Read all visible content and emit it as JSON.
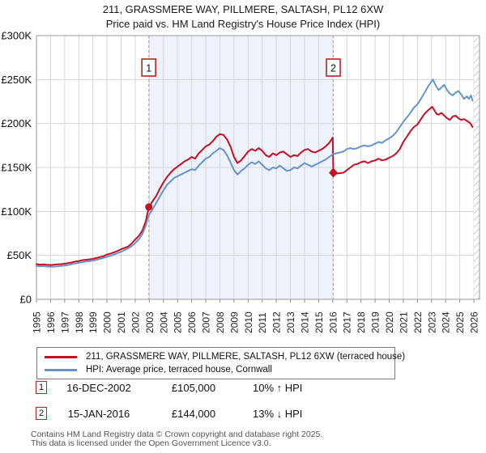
{
  "title": "211, GRASSMERE WAY, PILLMERE, SALTASH, PL12 6XW",
  "subtitle": "Price paid vs. HM Land Registry's House Price Index (HPI)",
  "footer": {
    "line1": "Contains HM Land Registry data © Crown copyright and database right 2025.",
    "line2": "This data is licensed under the Open Government Licence v3.0."
  },
  "chart_data": {
    "type": "line",
    "xlim": [
      1995,
      2026.4
    ],
    "ylim": [
      0,
      300
    ],
    "units": "GBP thousands",
    "grid": true,
    "legend_position": "bottom",
    "x_ticks": [
      1995,
      1996,
      1997,
      1998,
      1999,
      2000,
      2001,
      2002,
      2003,
      2004,
      2005,
      2006,
      2007,
      2008,
      2009,
      2010,
      2011,
      2012,
      2013,
      2014,
      2015,
      2016,
      2017,
      2018,
      2019,
      2020,
      2021,
      2022,
      2023,
      2024,
      2025,
      2026
    ],
    "y_ticks": [
      {
        "value": 0,
        "label": "£0"
      },
      {
        "value": 50,
        "label": "£50K"
      },
      {
        "value": 100,
        "label": "£100K"
      },
      {
        "value": 150,
        "label": "£150K"
      },
      {
        "value": 200,
        "label": "£200K"
      },
      {
        "value": 250,
        "label": "£250K"
      },
      {
        "value": 300,
        "label": "£300K"
      }
    ],
    "colors": {
      "sale_line": "#ea9090",
      "flag_border": "#bb2222"
    },
    "shaded_region": {
      "from": 2002.96,
      "to": 2016.04,
      "color": "#eef2fb"
    },
    "hatch_from": 2026.0,
    "series": [
      {
        "name": "211, GRASSMERE WAY, PILLMERE, SALTASH, PL12 6XW (terraced house)",
        "color": "#c50f24",
        "points": [
          [
            1995.0,
            40
          ],
          [
            1995.25,
            39.5
          ],
          [
            1995.5,
            39.8
          ],
          [
            1995.75,
            39.2
          ],
          [
            1996.0,
            39
          ],
          [
            1996.25,
            39.4
          ],
          [
            1996.5,
            39.8
          ],
          [
            1996.75,
            40
          ],
          [
            1997.0,
            40.5
          ],
          [
            1997.25,
            41.2
          ],
          [
            1997.5,
            42
          ],
          [
            1997.75,
            43
          ],
          [
            1998.0,
            43.5
          ],
          [
            1998.25,
            44.5
          ],
          [
            1998.5,
            45
          ],
          [
            1998.75,
            45.5
          ],
          [
            1999.0,
            46
          ],
          [
            1999.25,
            47
          ],
          [
            1999.5,
            48
          ],
          [
            1999.75,
            49
          ],
          [
            2000.0,
            51
          ],
          [
            2000.25,
            52
          ],
          [
            2000.5,
            53.5
          ],
          [
            2000.75,
            55
          ],
          [
            2001.0,
            57
          ],
          [
            2001.25,
            58.5
          ],
          [
            2001.5,
            60
          ],
          [
            2001.75,
            63.5
          ],
          [
            2002.0,
            68
          ],
          [
            2002.25,
            72
          ],
          [
            2002.5,
            78
          ],
          [
            2002.75,
            89
          ],
          [
            2002.96,
            105
          ],
          [
            2003.25,
            112
          ],
          [
            2003.5,
            118
          ],
          [
            2003.75,
            126
          ],
          [
            2004.0,
            133
          ],
          [
            2004.25,
            139
          ],
          [
            2004.5,
            144
          ],
          [
            2004.75,
            148
          ],
          [
            2005.0,
            151
          ],
          [
            2005.25,
            154
          ],
          [
            2005.5,
            157
          ],
          [
            2005.75,
            159
          ],
          [
            2006.0,
            162
          ],
          [
            2006.25,
            160
          ],
          [
            2006.5,
            166
          ],
          [
            2006.75,
            170
          ],
          [
            2007.0,
            174
          ],
          [
            2007.25,
            176
          ],
          [
            2007.5,
            180
          ],
          [
            2007.75,
            185
          ],
          [
            2008.0,
            188
          ],
          [
            2008.25,
            187
          ],
          [
            2008.5,
            182
          ],
          [
            2008.75,
            174
          ],
          [
            2009.0,
            162
          ],
          [
            2009.25,
            155
          ],
          [
            2009.5,
            158
          ],
          [
            2009.75,
            163
          ],
          [
            2010.0,
            168
          ],
          [
            2010.25,
            171
          ],
          [
            2010.5,
            169
          ],
          [
            2010.75,
            172
          ],
          [
            2011.0,
            169
          ],
          [
            2011.25,
            164
          ],
          [
            2011.5,
            162
          ],
          [
            2011.75,
            166
          ],
          [
            2012.0,
            164
          ],
          [
            2012.25,
            167
          ],
          [
            2012.5,
            168
          ],
          [
            2012.75,
            165
          ],
          [
            2013.0,
            162
          ],
          [
            2013.25,
            164
          ],
          [
            2013.5,
            163
          ],
          [
            2013.75,
            167
          ],
          [
            2014.0,
            170
          ],
          [
            2014.25,
            171
          ],
          [
            2014.5,
            168
          ],
          [
            2014.75,
            167
          ],
          [
            2015.0,
            169
          ],
          [
            2015.25,
            171
          ],
          [
            2015.5,
            174
          ],
          [
            2015.75,
            178
          ],
          [
            2016.0,
            184
          ],
          [
            2016.04,
            144
          ],
          [
            2016.25,
            143
          ],
          [
            2016.5,
            143.5
          ],
          [
            2016.75,
            144
          ],
          [
            2017.0,
            147
          ],
          [
            2017.25,
            150
          ],
          [
            2017.5,
            153
          ],
          [
            2017.75,
            154
          ],
          [
            2018.0,
            156
          ],
          [
            2018.25,
            157
          ],
          [
            2018.5,
            155
          ],
          [
            2018.75,
            157
          ],
          [
            2019.0,
            158
          ],
          [
            2019.25,
            160
          ],
          [
            2019.5,
            158
          ],
          [
            2019.75,
            159
          ],
          [
            2020.0,
            161
          ],
          [
            2020.25,
            163
          ],
          [
            2020.5,
            166
          ],
          [
            2020.75,
            171
          ],
          [
            2021.0,
            179
          ],
          [
            2021.25,
            185
          ],
          [
            2021.5,
            191
          ],
          [
            2021.75,
            196
          ],
          [
            2022.0,
            199
          ],
          [
            2022.25,
            205
          ],
          [
            2022.5,
            211
          ],
          [
            2022.75,
            215
          ],
          [
            2023.05,
            219
          ],
          [
            2023.2,
            215
          ],
          [
            2023.35,
            211
          ],
          [
            2023.5,
            210
          ],
          [
            2023.7,
            212
          ],
          [
            2023.9,
            209
          ],
          [
            2024.1,
            206
          ],
          [
            2024.3,
            204
          ],
          [
            2024.5,
            208
          ],
          [
            2024.7,
            209
          ],
          [
            2024.9,
            206
          ],
          [
            2025.1,
            204
          ],
          [
            2025.3,
            205
          ],
          [
            2025.5,
            203
          ],
          [
            2025.7,
            201
          ],
          [
            2025.8,
            199
          ],
          [
            2025.9,
            196
          ]
        ]
      },
      {
        "name": "HPI: Average price, terraced house, Cornwall",
        "color": "#6694c8",
        "points": [
          [
            1995.0,
            38
          ],
          [
            1995.25,
            37.5
          ],
          [
            1995.5,
            37.8
          ],
          [
            1995.75,
            37.2
          ],
          [
            1996.0,
            37
          ],
          [
            1996.25,
            37.2
          ],
          [
            1996.5,
            37.5
          ],
          [
            1996.75,
            38
          ],
          [
            1997.0,
            38.5
          ],
          [
            1997.25,
            39
          ],
          [
            1997.5,
            40
          ],
          [
            1997.75,
            40.8
          ],
          [
            1998.0,
            41.5
          ],
          [
            1998.25,
            42.2
          ],
          [
            1998.5,
            43
          ],
          [
            1998.75,
            43.5
          ],
          [
            1999.0,
            44
          ],
          [
            1999.25,
            45
          ],
          [
            1999.5,
            46
          ],
          [
            1999.75,
            47
          ],
          [
            2000.0,
            48.5
          ],
          [
            2000.25,
            49.5
          ],
          [
            2000.5,
            51
          ],
          [
            2000.75,
            52.5
          ],
          [
            2001.0,
            54
          ],
          [
            2001.25,
            56
          ],
          [
            2001.5,
            58
          ],
          [
            2001.75,
            60.5
          ],
          [
            2002.0,
            64
          ],
          [
            2002.25,
            68
          ],
          [
            2002.5,
            74
          ],
          [
            2002.75,
            84
          ],
          [
            2002.96,
            95.5
          ],
          [
            2003.25,
            103
          ],
          [
            2003.5,
            110
          ],
          [
            2003.75,
            117
          ],
          [
            2004.0,
            124
          ],
          [
            2004.25,
            130
          ],
          [
            2004.5,
            134
          ],
          [
            2004.75,
            138
          ],
          [
            2005.0,
            140
          ],
          [
            2005.25,
            142
          ],
          [
            2005.5,
            144
          ],
          [
            2005.75,
            146
          ],
          [
            2006.0,
            148
          ],
          [
            2006.25,
            147
          ],
          [
            2006.5,
            152
          ],
          [
            2006.75,
            156
          ],
          [
            2007.0,
            160
          ],
          [
            2007.25,
            162
          ],
          [
            2007.5,
            166
          ],
          [
            2007.75,
            169
          ],
          [
            2008.0,
            172
          ],
          [
            2008.25,
            170
          ],
          [
            2008.5,
            164
          ],
          [
            2008.75,
            156
          ],
          [
            2009.0,
            147
          ],
          [
            2009.25,
            142
          ],
          [
            2009.5,
            146
          ],
          [
            2009.75,
            149
          ],
          [
            2010.0,
            153
          ],
          [
            2010.25,
            156
          ],
          [
            2010.5,
            154
          ],
          [
            2010.75,
            157
          ],
          [
            2011.0,
            153
          ],
          [
            2011.25,
            149
          ],
          [
            2011.5,
            147
          ],
          [
            2011.75,
            150
          ],
          [
            2012.0,
            149
          ],
          [
            2012.25,
            152
          ],
          [
            2012.5,
            149
          ],
          [
            2012.75,
            146
          ],
          [
            2013.0,
            147
          ],
          [
            2013.25,
            150
          ],
          [
            2013.5,
            149
          ],
          [
            2013.75,
            152
          ],
          [
            2014.0,
            155
          ],
          [
            2014.25,
            153
          ],
          [
            2014.5,
            151
          ],
          [
            2014.75,
            153
          ],
          [
            2015.0,
            155
          ],
          [
            2015.25,
            157
          ],
          [
            2015.5,
            159
          ],
          [
            2015.75,
            162
          ],
          [
            2016.04,
            165.5
          ],
          [
            2016.25,
            166
          ],
          [
            2016.5,
            167
          ],
          [
            2016.75,
            168
          ],
          [
            2017.0,
            171
          ],
          [
            2017.25,
            172
          ],
          [
            2017.5,
            171
          ],
          [
            2017.75,
            172
          ],
          [
            2018.0,
            174
          ],
          [
            2018.25,
            175
          ],
          [
            2018.5,
            174
          ],
          [
            2018.75,
            175
          ],
          [
            2019.0,
            177
          ],
          [
            2019.25,
            179
          ],
          [
            2019.5,
            178
          ],
          [
            2019.75,
            181
          ],
          [
            2020.0,
            183
          ],
          [
            2020.25,
            186
          ],
          [
            2020.5,
            190
          ],
          [
            2020.75,
            196
          ],
          [
            2021.0,
            202
          ],
          [
            2021.25,
            207
          ],
          [
            2021.5,
            212
          ],
          [
            2021.75,
            218
          ],
          [
            2022.0,
            222
          ],
          [
            2022.25,
            228
          ],
          [
            2022.5,
            235
          ],
          [
            2022.75,
            242
          ],
          [
            2023.0,
            248
          ],
          [
            2023.1,
            250
          ],
          [
            2023.3,
            243
          ],
          [
            2023.5,
            238
          ],
          [
            2023.7,
            241
          ],
          [
            2023.9,
            244
          ],
          [
            2024.1,
            238
          ],
          [
            2024.3,
            234
          ],
          [
            2024.5,
            232
          ],
          [
            2024.7,
            235
          ],
          [
            2024.9,
            237
          ],
          [
            2025.1,
            233
          ],
          [
            2025.3,
            228
          ],
          [
            2025.5,
            231
          ],
          [
            2025.65,
            228
          ],
          [
            2025.8,
            232
          ],
          [
            2025.9,
            226
          ]
        ]
      }
    ],
    "sales": [
      {
        "n": "1",
        "date": "16-DEC-2002",
        "price": "£105,000",
        "hpi_relation": "10% ↑ HPI",
        "year": 2002.96,
        "value": 105,
        "marker": "circle"
      },
      {
        "n": "2",
        "date": "15-JAN-2016",
        "price": "£144,000",
        "hpi_relation": "13% ↓ HPI",
        "year": 2016.04,
        "value": 144,
        "marker": "diamond"
      }
    ]
  }
}
